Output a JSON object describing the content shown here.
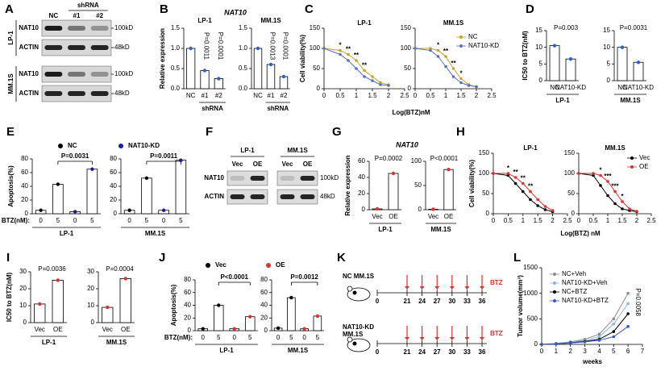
{
  "blots": [
    {
      "panel": "A",
      "lane_group": "shRNA",
      "lanes": [
        "NC",
        "#1",
        "#2"
      ],
      "cell_lines": [
        "LP-1",
        "MM.1S"
      ],
      "proteins": [
        "NAT10",
        "ACTIN"
      ],
      "sizes": [
        "100kD",
        "48kD"
      ]
    },
    {
      "panel": "F",
      "cell_lines": [
        "LP-1",
        "MM.1S"
      ],
      "lanes": [
        "Vec",
        "OE"
      ],
      "proteins": [
        "NAT10",
        "ACTIN"
      ],
      "sizes": [
        "100kD",
        "48kD"
      ]
    }
  ],
  "chart_data": [
    {
      "panel": "B",
      "type": "bar",
      "title": "NAT10",
      "ylabel": "Relative expression",
      "color": "#2f5fd0",
      "subplots": [
        {
          "title": "LP-1",
          "group_label": "shRNA",
          "categories": [
            "NC",
            "#1",
            "#2"
          ],
          "values": [
            1.0,
            0.45,
            0.25
          ],
          "ylim": [
            0,
            1.5
          ],
          "yticks": [
            {
              "value": 0,
              "label": "0.0"
            },
            0.5,
            {
              "value": 1,
              "label": "1.0"
            },
            1.5
          ],
          "pvalues": [
            "P=0.0011",
            "P=0.0001"
          ]
        },
        {
          "title": "MM.1S",
          "group_label": "shRNA",
          "categories": [
            "NC",
            "#1",
            "#2"
          ],
          "values": [
            1.0,
            0.6,
            0.3
          ],
          "ylim": [
            0,
            1.5
          ],
          "yticks": [
            {
              "value": 0,
              "label": "0.0"
            },
            0.5,
            {
              "value": 1,
              "label": "1.0"
            },
            1.5
          ],
          "pvalues": [
            "P=0.0013",
            "P=0.0001"
          ]
        }
      ]
    },
    {
      "panel": "C",
      "type": "line",
      "ylabel": "Cell viability(%)",
      "xlabel": "Log(BTZ)nM",
      "xlim": [
        0,
        2.5
      ],
      "xticks": [
        0,
        0.5,
        1,
        1.5,
        2,
        2.5
      ],
      "ylim": [
        0,
        150
      ],
      "yticks": [
        0,
        50,
        100,
        150
      ],
      "legend": [
        {
          "name": "NC",
          "color": "#c9a227"
        },
        {
          "name": "NAT10-KD",
          "color": "#5a6fc8"
        }
      ],
      "subplots": [
        {
          "title": "LP-1",
          "x": [
            0,
            0.5,
            0.75,
            1,
            1.25,
            1.5,
            1.75,
            2
          ],
          "series": [
            {
              "values": [
                100,
                95,
                85,
                70,
                45,
                30,
                15,
                10
              ]
            },
            {
              "values": [
                100,
                85,
                70,
                50,
                30,
                20,
                10,
                8
              ]
            }
          ],
          "significance": [
            null,
            "*",
            "**",
            "**",
            "**",
            null,
            null,
            null
          ]
        },
        {
          "title": "MM.1S",
          "x": [
            0,
            0.5,
            0.75,
            1,
            1.25,
            1.5,
            1.75,
            2
          ],
          "series": [
            {
              "values": [
                100,
                100,
                95,
                80,
                50,
                25,
                10,
                5
              ]
            },
            {
              "values": [
                100,
                95,
                80,
                55,
                30,
                15,
                8,
                5
              ]
            }
          ],
          "significance": [
            null,
            null,
            "*",
            "**",
            "**",
            "*",
            null,
            null
          ]
        }
      ]
    },
    {
      "panel": "D",
      "type": "bar",
      "ylabel": "IC50 to BTZ(nM)",
      "color": "#2f5fd0",
      "subplots": [
        {
          "group_label": "LP-1",
          "categories": [
            "NC",
            "NAT10-KD"
          ],
          "values": [
            10.5,
            6.5
          ],
          "ylim": [
            0,
            15
          ],
          "yticks": [
            0,
            5,
            10,
            15
          ],
          "pvalues": [
            "P=0.003"
          ]
        },
        {
          "group_label": "MM.1S",
          "categories": [
            "NC",
            "NAT10-KD"
          ],
          "values": [
            10,
            5.5
          ],
          "ylim": [
            0,
            15
          ],
          "yticks": [
            0,
            5,
            10,
            15
          ],
          "pvalues": [
            "P=0.0031"
          ]
        }
      ]
    },
    {
      "panel": "E",
      "type": "bar",
      "ylabel": "Apoptosis(%)",
      "xlabel": "BTZ(nM):",
      "legend": [
        {
          "name": "NC",
          "color": "#000000"
        },
        {
          "name": "NAT10-KD",
          "color": "#1a1aa8"
        }
      ],
      "subplots": [
        {
          "group_label": "LP-1",
          "categories": [
            "0",
            "5",
            "0",
            "5"
          ],
          "series": [
            {
              "values": [
                5,
                43,
                null,
                null
              ]
            },
            {
              "values": [
                null,
                null,
                3,
                65
              ]
            }
          ],
          "ylim": [
            0,
            80
          ],
          "yticks": [
            0,
            20,
            40,
            60,
            80
          ],
          "pvalues": [
            "P=0.0031"
          ]
        },
        {
          "group_label": "MM.1S",
          "categories": [
            "0",
            "5",
            "0",
            "5"
          ],
          "series": [
            {
              "values": [
                5,
                52,
                null,
                null
              ]
            },
            {
              "values": [
                null,
                null,
                5,
                78
              ]
            }
          ],
          "ylim": [
            0,
            80
          ],
          "yticks": [
            0,
            20,
            40,
            60,
            80
          ],
          "pvalues": [
            "P=0.0011"
          ]
        }
      ]
    },
    {
      "panel": "G",
      "type": "bar",
      "title": "NAT10",
      "ylabel": "Relative expression",
      "color": "#e03030",
      "subplots": [
        {
          "group_label": "LP-1",
          "categories": [
            "Vec",
            "OE"
          ],
          "values": [
            1,
            45
          ],
          "ylim": [
            0,
            60
          ],
          "yticks": [
            0,
            20,
            40,
            60
          ],
          "pvalues": [
            "P=0.0002"
          ]
        },
        {
          "group_label": "MM.1S",
          "categories": [
            "Vec",
            "OE"
          ],
          "values": [
            1,
            83
          ],
          "ylim": [
            0,
            100
          ],
          "yticks": [
            0,
            50,
            100
          ],
          "pvalues": [
            "P<0.0001"
          ]
        }
      ]
    },
    {
      "panel": "H",
      "type": "line",
      "ylabel": "Cell viability(%)",
      "xlabel": "Log(BTZ) nM",
      "xlim": [
        0,
        2.5
      ],
      "xticks": [
        0,
        0.5,
        1,
        1.5,
        2,
        2.5
      ],
      "ylim": [
        0,
        150
      ],
      "yticks": [
        0,
        50,
        100,
        150
      ],
      "legend": [
        {
          "name": "Vec",
          "color": "#000000"
        },
        {
          "name": "OE",
          "color": "#e03030"
        }
      ],
      "subplots": [
        {
          "title": "LP-1",
          "x": [
            0,
            0.5,
            0.75,
            1,
            1.25,
            1.5,
            1.75,
            2
          ],
          "series": [
            {
              "values": [
                100,
                95,
                75,
                55,
                35,
                20,
                10,
                5
              ]
            },
            {
              "values": [
                100,
                100,
                90,
                75,
                55,
                35,
                18,
                8
              ]
            }
          ],
          "significance": [
            null,
            "*",
            "**",
            "**",
            "**",
            null,
            null,
            null
          ]
        },
        {
          "title": "MM.1S",
          "x": [
            0,
            0.5,
            0.75,
            1,
            1.25,
            1.5,
            1.75,
            2
          ],
          "series": [
            {
              "values": [
                100,
                95,
                70,
                45,
                25,
                12,
                8,
                5
              ]
            },
            {
              "values": [
                100,
                100,
                95,
                80,
                55,
                30,
                12,
                6
              ]
            }
          ],
          "significance": [
            null,
            null,
            "*",
            "***",
            "***",
            "*",
            null,
            null
          ]
        }
      ]
    },
    {
      "panel": "I",
      "type": "bar",
      "ylabel": "IC50 to BTZ(nM)",
      "color": "#e03030",
      "subplots": [
        {
          "group_label": "LP-1",
          "categories": [
            "Vec",
            "OE"
          ],
          "values": [
            11,
            25
          ],
          "ylim": [
            0,
            30
          ],
          "yticks": [
            0,
            10,
            20,
            30
          ],
          "pvalues": [
            "P=0.0036"
          ]
        },
        {
          "group_label": "MM.1S",
          "categories": [
            "Vec",
            "OE"
          ],
          "values": [
            9,
            26
          ],
          "ylim": [
            0,
            30
          ],
          "yticks": [
            0,
            10,
            20,
            30
          ],
          "pvalues": [
            "P=0.0004"
          ]
        }
      ]
    },
    {
      "panel": "J",
      "type": "bar",
      "ylabel": "Apoptosis(%)",
      "xlabel": "BTZ(nM):",
      "legend": [
        {
          "name": "Vec",
          "color": "#000000"
        },
        {
          "name": "OE",
          "color": "#e03030"
        }
      ],
      "subplots": [
        {
          "group_label": "LP-1",
          "categories": [
            "0",
            "5",
            "0",
            "5"
          ],
          "series": [
            {
              "values": [
                3,
                40,
                null,
                null
              ]
            },
            {
              "values": [
                null,
                null,
                3,
                22
              ]
            }
          ],
          "ylim": [
            0,
            80
          ],
          "yticks": [
            0,
            20,
            40,
            60,
            80
          ],
          "pvalues": [
            "P<0.0001"
          ]
        },
        {
          "group_label": "MM.1S",
          "categories": [
            "0",
            "5",
            "0",
            "5"
          ],
          "series": [
            {
              "values": [
                4,
                52,
                null,
                null
              ]
            },
            {
              "values": [
                null,
                null,
                3,
                23
              ]
            }
          ],
          "ylim": [
            0,
            80
          ],
          "yticks": [
            0,
            20,
            40,
            60,
            80
          ],
          "pvalues": [
            "P=0.0012"
          ]
        }
      ]
    },
    {
      "panel": "L",
      "type": "line",
      "ylabel": "Tumor volume(mm³)",
      "xlabel": "weeks",
      "xlim": [
        0,
        7
      ],
      "xticks": [
        0,
        1,
        2,
        3,
        4,
        5,
        6,
        7
      ],
      "ylim": [
        0,
        1500
      ],
      "yticks": [
        0,
        500,
        1000,
        1500
      ],
      "legend": [
        {
          "name": "NC+Veh",
          "color": "#8c8c8c"
        },
        {
          "name": "NAT10-KD+Veh",
          "color": "#8fb4e8"
        },
        {
          "name": "NC+BTZ",
          "color": "#000000"
        },
        {
          "name": "NAT10-KD+BTZ",
          "color": "#3a55c8"
        }
      ],
      "subplots": [
        {
          "x": [
            0,
            1,
            2,
            3,
            4,
            5,
            6
          ],
          "series": [
            {
              "values": [
                0,
                20,
                50,
                100,
                200,
                500,
                1000
              ]
            },
            {
              "values": [
                0,
                15,
                40,
                80,
                150,
                400,
                800
              ]
            },
            {
              "values": [
                0,
                10,
                30,
                60,
                100,
                250,
                600
              ]
            },
            {
              "values": [
                0,
                10,
                25,
                50,
                80,
                150,
                350
              ]
            }
          ],
          "pvalues": [
            "P=0.0058"
          ]
        }
      ]
    }
  ],
  "schematic": {
    "panel": "K",
    "groups": [
      {
        "label": [
          "NC MM.1S"
        ]
      },
      {
        "label": [
          "NAT10-KD",
          "MM.1S"
        ]
      }
    ],
    "days": [
      0,
      21,
      24,
      27,
      30,
      33,
      36
    ],
    "treatment": "BTZ"
  }
}
